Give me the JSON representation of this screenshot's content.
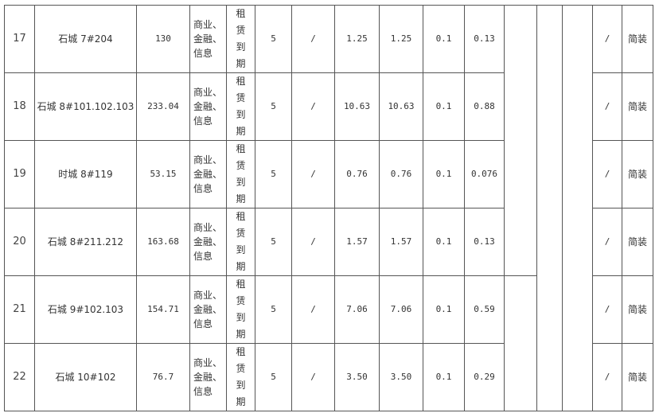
{
  "rows": [
    {
      "no": "17",
      "name": "石城 7#204",
      "area": "130",
      "use": "商业、金融、信息",
      "status": "租赁到期",
      "years": "5",
      "c7": "/",
      "v1": "1.25",
      "v2": "1.25",
      "v3": "0.1",
      "v4": "0.13",
      "c15": "/",
      "decor": "简装"
    },
    {
      "no": "18",
      "name": "石城 8#101.102.103",
      "area": "233.04",
      "use": "商业、金融、信息",
      "status": "租赁到期",
      "years": "5",
      "c7": "/",
      "v1": "10.63",
      "v2": "10.63",
      "v3": "0.1",
      "v4": "0.88",
      "c15": "/",
      "decor": "简装"
    },
    {
      "no": "19",
      "name": "时城 8#119",
      "area": "53.15",
      "use": "商业、金融、信息",
      "status": "租赁到期",
      "years": "5",
      "c7": "/",
      "v1": "0.76",
      "v2": "0.76",
      "v3": "0.1",
      "v4": "0.076",
      "c15": "/",
      "decor": "简装"
    },
    {
      "no": "20",
      "name": "石城 8#211.212",
      "area": "163.68",
      "use": "商业、金融、信息",
      "status": "租赁到期",
      "years": "5",
      "c7": "/",
      "v1": "1.57",
      "v2": "1.57",
      "v3": "0.1",
      "v4": "0.13",
      "c15": "/",
      "decor": "简装"
    },
    {
      "no": "21",
      "name": "石城 9#102.103",
      "area": "154.71",
      "use": "商业、金融、信息",
      "status": "租赁到期",
      "years": "5",
      "c7": "/",
      "v1": "7.06",
      "v2": "7.06",
      "v3": "0.1",
      "v4": "0.59",
      "c15": "/",
      "decor": "简装"
    },
    {
      "no": "22",
      "name": "石城 10#102",
      "area": "76.7",
      "use": "商业、金融、信息",
      "status": "租赁到期",
      "years": "5",
      "c7": "/",
      "v1": "3.50",
      "v2": "3.50",
      "v3": "0.1",
      "v4": "0.29",
      "c15": "/",
      "decor": "简装"
    }
  ]
}
